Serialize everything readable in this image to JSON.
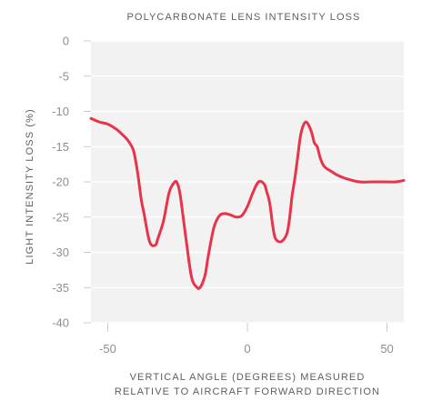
{
  "chart_data": {
    "type": "line",
    "title": "POLYCARBONATE LENS INTENSITY LOSS",
    "xlabel_lines": [
      "VERTICAL ANGLE (DEGREES) MEASURED",
      "RELATIVE TO AIRCRAFT FORWARD DIRECTION"
    ],
    "ylabel": "LIGHT INTENSITY LOSS (%)",
    "xlim": [
      -56,
      56
    ],
    "ylim": [
      -40,
      0
    ],
    "x_ticks": [
      -50,
      0,
      50
    ],
    "x_tick_labels": [
      "-50",
      "0",
      "50"
    ],
    "y_ticks": [
      0,
      -5,
      -10,
      -15,
      -20,
      -25,
      -30,
      -35,
      -40
    ],
    "y_tick_labels": [
      "0",
      "-5",
      "-10",
      "-15",
      "-20",
      "-25",
      "-30",
      "-35",
      "-40"
    ],
    "grid": "horizontal",
    "colors": {
      "plot_bg": "#f2f2f2",
      "line": "#e8334a",
      "grid": "#ffffff",
      "text": "#5b5f63"
    },
    "series": [
      {
        "x": [
          -56,
          -53,
          -50,
          -47,
          -45,
          -43,
          -41,
          -40,
          -39,
          -38,
          -37,
          -35,
          -33,
          -32,
          -30,
          -28,
          -26,
          -25,
          -24,
          -22,
          -20,
          -18,
          -17,
          -16,
          -15,
          -14,
          -12,
          -10,
          -8,
          -6,
          -4,
          -2,
          0,
          2,
          4,
          6,
          7,
          8,
          9,
          10,
          12,
          14,
          15,
          16,
          17,
          18,
          19,
          20,
          21,
          22,
          23,
          24,
          25,
          26,
          27,
          28,
          30,
          32,
          35,
          40,
          45,
          50,
          53,
          56
        ],
        "y": [
          -11,
          -11.5,
          -11.8,
          -12.5,
          -13.2,
          -14.0,
          -15.3,
          -17,
          -19.5,
          -22.5,
          -24.5,
          -28.5,
          -29,
          -28,
          -25.5,
          -21.5,
          -20,
          -20.3,
          -22,
          -28,
          -33.5,
          -35,
          -35,
          -34.3,
          -33,
          -30.5,
          -26.5,
          -24.8,
          -24.5,
          -24.7,
          -25,
          -24.8,
          -23.5,
          -21.5,
          -20,
          -20.3,
          -21.5,
          -23,
          -26,
          -28,
          -28.5,
          -27.5,
          -25.5,
          -22,
          -19.5,
          -16.5,
          -13.5,
          -12,
          -11.5,
          -12,
          -13,
          -14.5,
          -15,
          -16.5,
          -17.5,
          -18,
          -18.5,
          -19,
          -19.5,
          -20,
          -20,
          -20,
          -20,
          -19.8
        ]
      }
    ]
  }
}
